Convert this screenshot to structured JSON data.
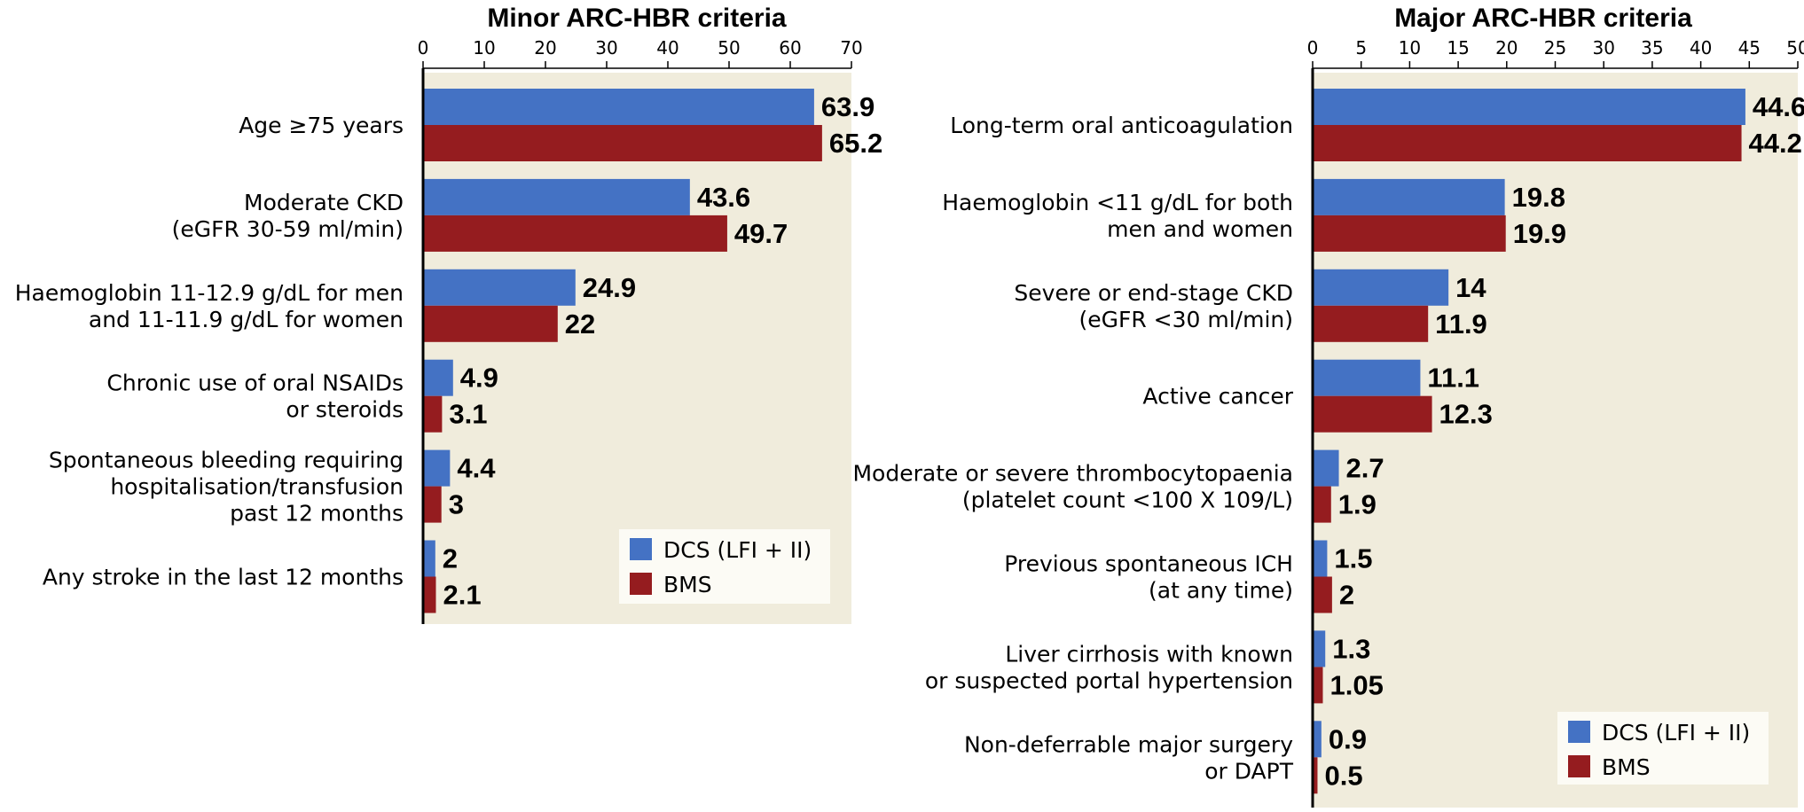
{
  "colors": {
    "dcs": "#4472C4",
    "bms": "#951C1F",
    "plot_bg": "#F0ECDC",
    "legend_bg": "#FCFBF5"
  },
  "chart_data": [
    {
      "type": "bar",
      "orientation": "horizontal",
      "title": "Minor ARC-HBR criteria",
      "xlim": [
        0,
        70
      ],
      "ticks": [
        "0",
        "10",
        "20",
        "30",
        "40",
        "50",
        "60",
        "70"
      ],
      "categories": [
        [
          "Age ≥75 years"
        ],
        [
          "Moderate CKD",
          "(eGFR 30-59 ml/min)"
        ],
        [
          "Haemoglobin 11-12.9 g/dL for men",
          "and 11-11.9 g/dL for women"
        ],
        [
          "Chronic use of oral NSAIDs",
          "or steroids"
        ],
        [
          "Spontaneous bleeding requiring",
          "hospitalisation/transfusion",
          "past 12 months"
        ],
        [
          "Any stroke in the last 12 months"
        ]
      ],
      "series": [
        {
          "name": "DCS (LFI + II)",
          "values": [
            63.9,
            43.6,
            24.9,
            4.9,
            4.4,
            2
          ],
          "labels": [
            "63.9",
            "43.6",
            "24.9",
            "4.9",
            "4.4",
            "2"
          ]
        },
        {
          "name": "BMS",
          "values": [
            65.2,
            49.7,
            22,
            3.1,
            3,
            2.1
          ],
          "labels": [
            "65.2",
            "49.7",
            "22",
            "3.1",
            "3",
            "2.1"
          ]
        }
      ],
      "legend_position": "bottom-right"
    },
    {
      "type": "bar",
      "orientation": "horizontal",
      "title": "Major ARC-HBR criteria",
      "xlim": [
        0,
        50
      ],
      "ticks": [
        "0",
        "5",
        "10",
        "15",
        "20",
        "25",
        "30",
        "35",
        "40",
        "45",
        "50"
      ],
      "categories": [
        [
          "Long-term oral anticoagulation"
        ],
        [
          "Haemoglobin <11 g/dL for both",
          "men and women"
        ],
        [
          "Severe or end-stage CKD",
          "(eGFR <30 ml/min)"
        ],
        [
          "Active cancer"
        ],
        [
          "Moderate or severe thrombocytopaenia",
          "(platelet count <100 X 109/L)"
        ],
        [
          "Previous spontaneous ICH",
          "(at any time)"
        ],
        [
          "Liver cirrhosis with known",
          "or suspected portal hypertension"
        ],
        [
          "Non-deferrable major surgery",
          "or DAPT"
        ]
      ],
      "series": [
        {
          "name": "DCS (LFI + II)",
          "values": [
            44.6,
            19.8,
            14,
            11.1,
            2.7,
            1.5,
            1.3,
            0.9
          ],
          "labels": [
            "44.6",
            "19.8",
            "14",
            "11.1",
            "2.7",
            "1.5",
            "1.3",
            "0.9"
          ]
        },
        {
          "name": "BMS",
          "values": [
            44.2,
            19.9,
            11.9,
            12.3,
            1.9,
            2,
            1.05,
            0.5
          ],
          "labels": [
            "44.2",
            "19.9",
            "11.9",
            "12.3",
            "1.9",
            "2",
            "1.05",
            "0.5"
          ]
        }
      ],
      "legend_position": "bottom-right"
    }
  ]
}
